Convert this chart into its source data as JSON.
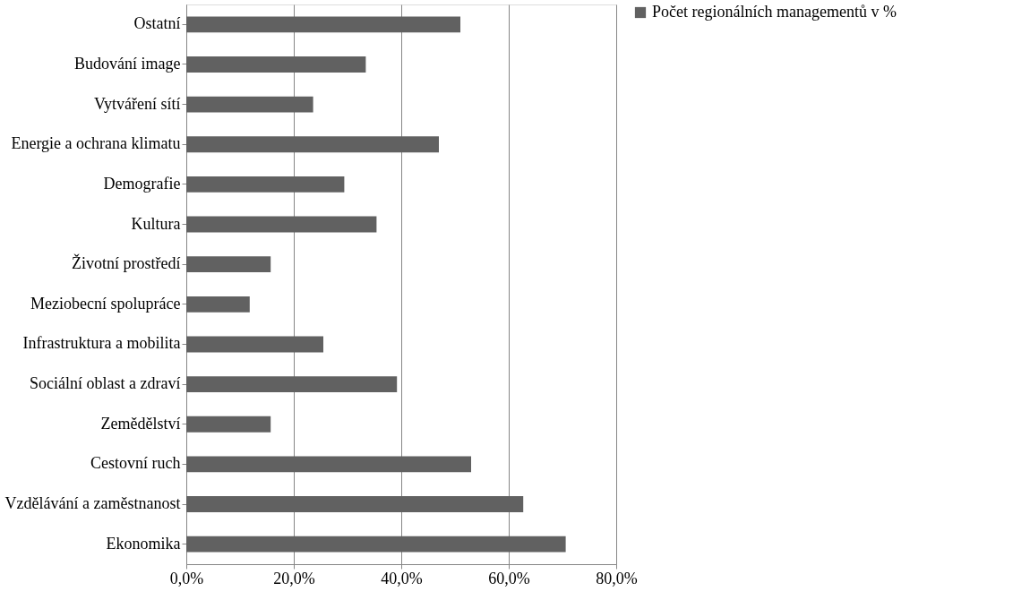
{
  "chart_data": {
    "type": "bar",
    "orientation": "horizontal",
    "categories": [
      "Ostatní",
      "Budování image",
      "Vytváření sítí",
      "Energie a ochrana klimatu",
      "Demografie",
      "Kultura",
      "Životní prostředí",
      "Meziobecní spolupráce",
      "Infrastruktura a mobilita",
      "Sociální oblast a zdraví",
      "Zemědělství",
      "Cestovní ruch",
      "Vzdělávání a zaměstnanost",
      "Ekonomika"
    ],
    "series": [
      {
        "name": "Počet regionálních managementů v %",
        "color": "#616161",
        "values": [
          51.0,
          33.4,
          23.6,
          47.0,
          29.4,
          35.4,
          15.7,
          11.8,
          25.5,
          39.2,
          15.7,
          53.0,
          62.7,
          70.6
        ]
      }
    ],
    "xlim": [
      0,
      80
    ],
    "xticks": [
      {
        "value": 0,
        "label": "0,0%"
      },
      {
        "value": 20,
        "label": "20,0%"
      },
      {
        "value": 40,
        "label": "40,0%"
      },
      {
        "value": 60,
        "label": "60,0%"
      },
      {
        "value": 80,
        "label": "80,0%"
      }
    ],
    "grid": "x",
    "legend": "right"
  }
}
